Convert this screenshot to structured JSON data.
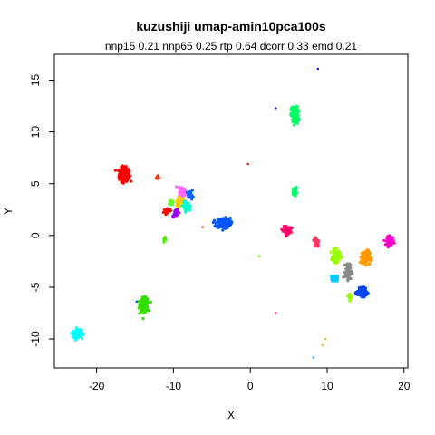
{
  "chart_data": {
    "type": "scatter",
    "title": "kuzushiji umap-amin10pca100s",
    "subtitle": "nnp15 0.21 nnp65 0.25 rtp 0.64 dcorr 0.33 emd 0.21",
    "xlabel": "X",
    "ylabel": "Y",
    "xlim": [
      -25.5,
      20.5
    ],
    "ylim": [
      -12.8,
      17.5
    ],
    "x_ticks": [
      "-20",
      "-10",
      "0",
      "10",
      "20"
    ],
    "y_ticks": [
      "-10",
      "-5",
      "0",
      "5",
      "10",
      "15"
    ],
    "x_tick_values": [
      -20,
      -10,
      0,
      10,
      20
    ],
    "y_tick_values": [
      -10,
      -5,
      0,
      5,
      10,
      15
    ],
    "grid": false,
    "legend": "none",
    "clusters": [
      {
        "color": "#ff0000",
        "x": -16.4,
        "y": 5.9,
        "sx": 0.55,
        "sy": 0.55,
        "n": 220
      },
      {
        "color": "#00ffff",
        "x": -22.5,
        "y": -9.5,
        "sx": 0.45,
        "sy": 0.3,
        "n": 150
      },
      {
        "color": "#33dd00",
        "x": -13.8,
        "y": -6.7,
        "sx": 0.45,
        "sy": 0.55,
        "n": 180
      },
      {
        "color": "#0055ff",
        "x": -3.5,
        "y": 1.2,
        "sx": 0.75,
        "sy": 0.4,
        "n": 220
      },
      {
        "color": "#00ff66",
        "x": 5.8,
        "y": 11.6,
        "sx": 0.4,
        "sy": 0.7,
        "n": 140
      },
      {
        "color": "#00ff66",
        "x": 5.8,
        "y": 4.3,
        "sx": 0.2,
        "sy": 0.3,
        "n": 50
      },
      {
        "color": "#ff0066",
        "x": 4.8,
        "y": 0.5,
        "sx": 0.4,
        "sy": 0.3,
        "n": 90
      },
      {
        "color": "#ff00cc",
        "x": 18.2,
        "y": -0.5,
        "sx": 0.35,
        "sy": 0.35,
        "n": 110
      },
      {
        "color": "#0044ff",
        "x": 14.5,
        "y": -5.5,
        "sx": 0.5,
        "sy": 0.3,
        "n": 150
      },
      {
        "color": "#99ff00",
        "x": 11.2,
        "y": -2.0,
        "sx": 0.4,
        "sy": 0.5,
        "n": 120
      },
      {
        "color": "#ff9900",
        "x": 15.0,
        "y": -2.1,
        "sx": 0.45,
        "sy": 0.55,
        "n": 120
      },
      {
        "color": "#00ccff",
        "x": 11.0,
        "y": -4.2,
        "sx": 0.3,
        "sy": 0.25,
        "n": 60
      },
      {
        "color": "#888888",
        "x": 12.8,
        "y": -3.5,
        "sx": 0.35,
        "sy": 0.6,
        "n": 70
      },
      {
        "color": "#99ff00",
        "x": 13.0,
        "y": -5.9,
        "sx": 0.2,
        "sy": 0.3,
        "n": 35
      },
      {
        "color": "#ff3366",
        "x": 8.6,
        "y": -0.6,
        "sx": 0.3,
        "sy": 0.4,
        "n": 40
      },
      {
        "color": "#ff66ff",
        "x": -8.8,
        "y": 4.2,
        "sx": 0.4,
        "sy": 0.4,
        "n": 60
      },
      {
        "color": "#ffcc00",
        "x": -9.2,
        "y": 3.3,
        "sx": 0.4,
        "sy": 0.4,
        "n": 50
      },
      {
        "color": "#00ffcc",
        "x": -8.3,
        "y": 2.8,
        "sx": 0.4,
        "sy": 0.35,
        "n": 50
      },
      {
        "color": "#9900ff",
        "x": -9.7,
        "y": 2.2,
        "sx": 0.35,
        "sy": 0.3,
        "n": 40
      },
      {
        "color": "#ff0000",
        "x": -10.8,
        "y": 2.4,
        "sx": 0.3,
        "sy": 0.2,
        "n": 30
      },
      {
        "color": "#0066ff",
        "x": -7.8,
        "y": 3.9,
        "sx": 0.3,
        "sy": 0.3,
        "n": 30
      },
      {
        "color": "#66ff33",
        "x": -10.3,
        "y": 3.2,
        "sx": 0.25,
        "sy": 0.25,
        "n": 20
      },
      {
        "color": "#55ee00",
        "x": -11.1,
        "y": -0.4,
        "sx": 0.12,
        "sy": 0.25,
        "n": 15
      },
      {
        "color": "#ff3300",
        "x": -12.1,
        "y": 5.6,
        "sx": 0.2,
        "sy": 0.15,
        "n": 10
      }
    ],
    "outliers": [
      {
        "x": 8.8,
        "y": 16.1,
        "color": "#0000ff"
      },
      {
        "x": 3.3,
        "y": 12.3,
        "color": "#0000ff"
      },
      {
        "x": -0.3,
        "y": 6.9,
        "color": "#ff0000"
      },
      {
        "x": 1.2,
        "y": -2.0,
        "color": "#66ff00"
      },
      {
        "x": 3.3,
        "y": -7.5,
        "color": "#ff3366"
      },
      {
        "x": 9.8,
        "y": -10.0,
        "color": "#ffaa00"
      },
      {
        "x": 9.4,
        "y": -10.6,
        "color": "#ffaa00"
      },
      {
        "x": 8.2,
        "y": -11.8,
        "color": "#00aaff"
      },
      {
        "x": -14.8,
        "y": -6.4,
        "color": "#0033ff"
      },
      {
        "x": -6.2,
        "y": 0.8,
        "color": "#ff3300"
      }
    ]
  }
}
